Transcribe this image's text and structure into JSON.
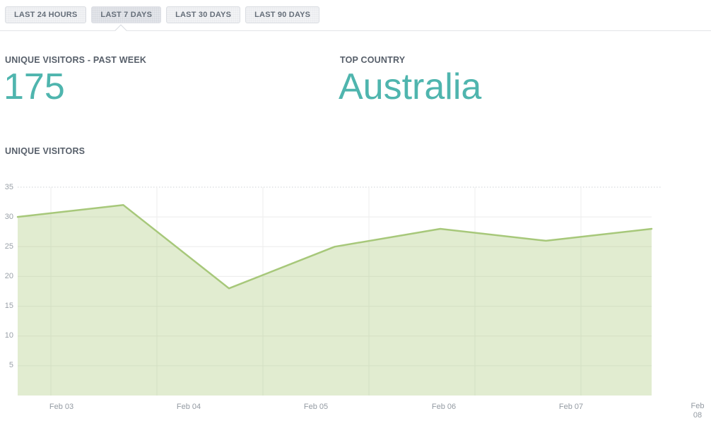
{
  "tabs": [
    {
      "label": "LAST 24 HOURS",
      "active": false
    },
    {
      "label": "LAST 7 DAYS",
      "active": true
    },
    {
      "label": "LAST 30 DAYS",
      "active": false
    },
    {
      "label": "LAST 90 DAYS",
      "active": false
    }
  ],
  "stats": {
    "unique_visitors_past_week": {
      "label": "UNIQUE VISITORS - PAST WEEK",
      "value": "175"
    },
    "top_country": {
      "label": "TOP COUNTRY",
      "value": "Australia"
    }
  },
  "chart_section": {
    "heading": "UNIQUE VISITORS"
  },
  "colors": {
    "accent_teal": "#4fb5ae",
    "chart_line_green": "#a7c87a",
    "chart_fill_green": "rgba(168, 200, 120, 0.35)"
  },
  "chart_data": {
    "type": "area",
    "title": "UNIQUE VISITORS",
    "series": [
      {
        "name": "Unique Visitors",
        "values": [
          30,
          32,
          18,
          25,
          28,
          26,
          28
        ]
      }
    ],
    "x_tick_labels": [
      "Feb 03",
      "Feb 04",
      "Feb 05",
      "Feb 06",
      "Feb 07",
      "Feb 08"
    ],
    "y_tick_labels": [
      35,
      30,
      25,
      20,
      15,
      10,
      5
    ],
    "ylim": [
      0,
      35
    ],
    "grid": true,
    "legend_position": "none"
  }
}
